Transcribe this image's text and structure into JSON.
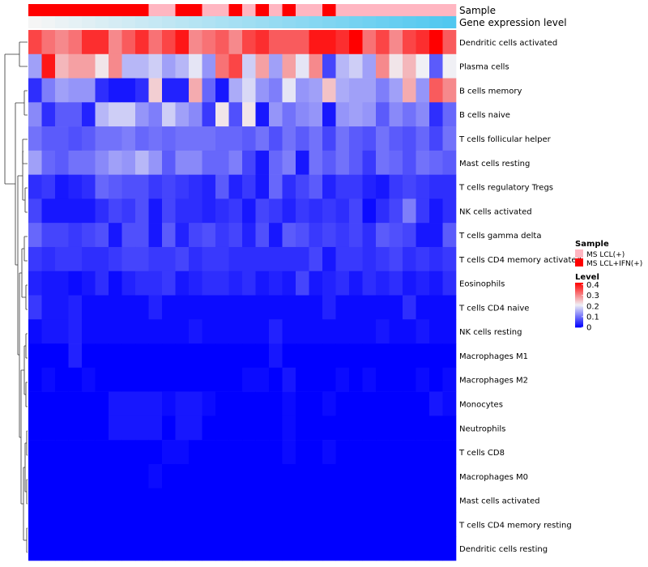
{
  "chart_data": {
    "type": "heatmap",
    "annotation_labels": [
      "Sample",
      "Gene expression level"
    ],
    "rows": [
      "Dendritic cells activated",
      "Plasma cells",
      "B cells memory",
      "B cells naive",
      "T cells follicular helper",
      "Mast cells resting",
      "T cells regulatory  Tregs",
      "NK cells activated",
      "T cells gamma delta",
      "T cells CD4 memory activated",
      "Eosinophils",
      "T cells CD4 naive",
      "NK cells resting",
      "Macrophages M1",
      "Macrophages M2",
      "Monocytes",
      "Neutrophils",
      "T cells CD8",
      "Macrophages M0",
      "Mast cells activated",
      "T cells CD4 memory resting",
      "Dendritic cells resting"
    ],
    "sample_groups": [
      1,
      1,
      1,
      1,
      1,
      1,
      1,
      1,
      1,
      0,
      0,
      1,
      1,
      0,
      0,
      1,
      0,
      1,
      0,
      1,
      0,
      0,
      1,
      0,
      0,
      0,
      0,
      0,
      0,
      0,
      0,
      0
    ],
    "sample_legend": {
      "title": "Sample",
      "items": [
        {
          "label": "MS LCL(+)",
          "color": "#ffb6c1"
        },
        {
          "label": "MS LCL+IFN(+)",
          "color": "#ff0000"
        }
      ]
    },
    "level_legend": {
      "title": "Level",
      "ticks": [
        "0.4",
        "0.3",
        "0.2",
        "0.1",
        "0"
      ],
      "tick_values": [
        0.4,
        0.3,
        0.2,
        0.1,
        0
      ],
      "range": [
        0,
        0.42
      ]
    },
    "values": [
      [
        0.36,
        0.32,
        0.3,
        0.32,
        0.38,
        0.38,
        0.3,
        0.34,
        0.38,
        0.32,
        0.36,
        0.4,
        0.3,
        0.32,
        0.34,
        0.3,
        0.36,
        0.38,
        0.34,
        0.34,
        0.34,
        0.4,
        0.4,
        0.38,
        0.42,
        0.32,
        0.36,
        0.3,
        0.36,
        0.38,
        0.42,
        0.34
      ],
      [
        0.14,
        0.4,
        0.26,
        0.28,
        0.28,
        0.22,
        0.3,
        0.16,
        0.16,
        0.18,
        0.14,
        0.16,
        0.2,
        0.13,
        0.32,
        0.36,
        0.18,
        0.28,
        0.14,
        0.28,
        0.2,
        0.3,
        0.06,
        0.16,
        0.18,
        0.14,
        0.3,
        0.22,
        0.26,
        0.21,
        0.08,
        0.21
      ],
      [
        0.04,
        0.11,
        0.14,
        0.13,
        0.13,
        0.04,
        0.02,
        0.02,
        0.04,
        0.24,
        0.03,
        0.03,
        0.27,
        0.09,
        0.02,
        0.15,
        0.19,
        0.13,
        0.11,
        0.2,
        0.13,
        0.14,
        0.25,
        0.15,
        0.14,
        0.14,
        0.11,
        0.14,
        0.27,
        0.13,
        0.34,
        0.3
      ],
      [
        0.12,
        0.04,
        0.08,
        0.08,
        0.03,
        0.16,
        0.18,
        0.18,
        0.13,
        0.11,
        0.18,
        0.14,
        0.12,
        0.05,
        0.22,
        0.07,
        0.22,
        0.02,
        0.13,
        0.1,
        0.12,
        0.13,
        0.02,
        0.13,
        0.14,
        0.13,
        0.08,
        0.12,
        0.1,
        0.12,
        0.04,
        0.09
      ],
      [
        0.1,
        0.08,
        0.08,
        0.07,
        0.08,
        0.1,
        0.1,
        0.11,
        0.09,
        0.1,
        0.09,
        0.1,
        0.1,
        0.1,
        0.09,
        0.09,
        0.08,
        0.1,
        0.07,
        0.1,
        0.08,
        0.1,
        0.06,
        0.1,
        0.08,
        0.07,
        0.1,
        0.08,
        0.07,
        0.09,
        0.06,
        0.1
      ],
      [
        0.14,
        0.09,
        0.08,
        0.1,
        0.1,
        0.12,
        0.14,
        0.13,
        0.16,
        0.13,
        0.08,
        0.12,
        0.12,
        0.09,
        0.09,
        0.11,
        0.06,
        0.02,
        0.09,
        0.11,
        0.02,
        0.1,
        0.08,
        0.1,
        0.08,
        0.05,
        0.1,
        0.09,
        0.07,
        0.1,
        0.09,
        0.08
      ],
      [
        0.04,
        0.05,
        0.02,
        0.03,
        0.04,
        0.09,
        0.08,
        0.07,
        0.07,
        0.05,
        0.06,
        0.05,
        0.04,
        0.03,
        0.08,
        0.03,
        0.05,
        0.02,
        0.09,
        0.04,
        0.06,
        0.08,
        0.03,
        0.05,
        0.05,
        0.03,
        0.02,
        0.05,
        0.06,
        0.05,
        0.04,
        0.04
      ],
      [
        0.06,
        0.02,
        0.02,
        0.02,
        0.02,
        0.04,
        0.06,
        0.05,
        0.07,
        0.02,
        0.06,
        0.04,
        0.04,
        0.03,
        0.04,
        0.05,
        0.02,
        0.06,
        0.05,
        0.03,
        0.05,
        0.04,
        0.05,
        0.04,
        0.06,
        0.01,
        0.04,
        0.06,
        0.11,
        0.05,
        0.02,
        0.04
      ],
      [
        0.09,
        0.06,
        0.06,
        0.05,
        0.06,
        0.07,
        0.02,
        0.07,
        0.07,
        0.02,
        0.08,
        0.03,
        0.06,
        0.07,
        0.05,
        0.06,
        0.03,
        0.07,
        0.02,
        0.08,
        0.07,
        0.05,
        0.06,
        0.05,
        0.06,
        0.04,
        0.08,
        0.07,
        0.06,
        0.02,
        0.02,
        0.08
      ],
      [
        0.05,
        0.04,
        0.05,
        0.05,
        0.04,
        0.04,
        0.05,
        0.06,
        0.06,
        0.05,
        0.05,
        0.06,
        0.04,
        0.05,
        0.05,
        0.04,
        0.04,
        0.04,
        0.04,
        0.04,
        0.04,
        0.06,
        0.02,
        0.05,
        0.05,
        0.04,
        0.05,
        0.06,
        0.04,
        0.05,
        0.04,
        0.05
      ],
      [
        0.03,
        0.02,
        0.02,
        0.01,
        0.02,
        0.04,
        0.01,
        0.03,
        0.04,
        0.04,
        0.05,
        0.02,
        0.03,
        0.04,
        0.04,
        0.03,
        0.04,
        0.02,
        0.03,
        0.02,
        0.06,
        0.02,
        0.03,
        0.04,
        0.02,
        0.04,
        0.03,
        0.04,
        0.02,
        0.03,
        0.02,
        0.04
      ],
      [
        0.05,
        0.02,
        0.02,
        0.03,
        0.01,
        0.01,
        0.01,
        0.01,
        0.01,
        0.03,
        0.01,
        0.01,
        0.01,
        0.01,
        0.01,
        0.01,
        0.01,
        0.01,
        0.01,
        0.01,
        0.01,
        0.01,
        0.03,
        0.01,
        0.01,
        0.01,
        0.01,
        0.01,
        0.04,
        0.01,
        0.01,
        0.01
      ],
      [
        0.01,
        0.02,
        0.02,
        0.03,
        0.01,
        0.01,
        0.01,
        0.01,
        0.01,
        0.01,
        0.01,
        0.01,
        0.02,
        0.01,
        0.01,
        0.01,
        0.01,
        0.01,
        0.03,
        0.01,
        0.01,
        0.01,
        0.01,
        0.01,
        0.01,
        0.01,
        0.02,
        0.01,
        0.01,
        0.02,
        0.01,
        0.01
      ],
      [
        0.0,
        0.0,
        0.0,
        0.03,
        0.0,
        0.0,
        0.0,
        0.0,
        0.0,
        0.0,
        0.0,
        0.0,
        0.0,
        0.0,
        0.0,
        0.0,
        0.0,
        0.0,
        0.02,
        0.0,
        0.0,
        0.0,
        0.0,
        0.0,
        0.0,
        0.0,
        0.0,
        0.0,
        0.0,
        0.0,
        0.0,
        0.0
      ],
      [
        0.0,
        0.01,
        0.0,
        0.0,
        0.01,
        0.0,
        0.0,
        0.0,
        0.0,
        0.0,
        0.0,
        0.0,
        0.0,
        0.0,
        0.0,
        0.0,
        0.01,
        0.01,
        0.0,
        0.02,
        0.0,
        0.0,
        0.0,
        0.01,
        0.0,
        0.01,
        0.0,
        0.0,
        0.0,
        0.01,
        0.0,
        0.01
      ],
      [
        0.0,
        0.0,
        0.0,
        0.0,
        0.0,
        0.0,
        0.02,
        0.02,
        0.02,
        0.02,
        0.01,
        0.02,
        0.02,
        0.01,
        0.0,
        0.0,
        0.0,
        0.0,
        0.0,
        0.01,
        0.0,
        0.0,
        0.01,
        0.0,
        0.0,
        0.0,
        0.0,
        0.0,
        0.0,
        0.0,
        0.02,
        0.01
      ],
      [
        0.0,
        0.0,
        0.0,
        0.0,
        0.0,
        0.0,
        0.02,
        0.02,
        0.02,
        0.02,
        0.0,
        0.02,
        0.02,
        0.0,
        0.0,
        0.0,
        0.0,
        0.0,
        0.0,
        0.01,
        0.0,
        0.0,
        0.0,
        0.0,
        0.0,
        0.0,
        0.0,
        0.0,
        0.0,
        0.0,
        0.0,
        0.0
      ],
      [
        0.0,
        0.0,
        0.0,
        0.0,
        0.0,
        0.0,
        0.0,
        0.0,
        0.0,
        0.0,
        0.01,
        0.01,
        0.0,
        0.0,
        0.0,
        0.0,
        0.0,
        0.0,
        0.0,
        0.01,
        0.0,
        0.0,
        0.01,
        0.0,
        0.0,
        0.0,
        0.0,
        0.0,
        0.0,
        0.0,
        0.0,
        0.0
      ],
      [
        0.0,
        0.0,
        0.0,
        0.0,
        0.0,
        0.0,
        0.0,
        0.0,
        0.0,
        0.01,
        0.0,
        0.0,
        0.0,
        0.0,
        0.0,
        0.0,
        0.0,
        0.0,
        0.0,
        0.0,
        0.0,
        0.0,
        0.0,
        0.0,
        0.0,
        0.0,
        0.0,
        0.0,
        0.0,
        0.0,
        0.0,
        0.0
      ],
      [
        0,
        0,
        0,
        0,
        0,
        0,
        0,
        0,
        0,
        0,
        0,
        0,
        0,
        0,
        0,
        0,
        0,
        0,
        0,
        0,
        0,
        0,
        0,
        0,
        0,
        0,
        0,
        0,
        0,
        0,
        0,
        0
      ],
      [
        0,
        0,
        0,
        0,
        0,
        0,
        0,
        0,
        0,
        0,
        0,
        0,
        0,
        0,
        0,
        0,
        0,
        0,
        0,
        0,
        0,
        0,
        0,
        0,
        0,
        0,
        0,
        0,
        0,
        0,
        0,
        0
      ],
      [
        0,
        0,
        0,
        0,
        0,
        0,
        0,
        0,
        0,
        0,
        0,
        0,
        0,
        0,
        0,
        0,
        0,
        0,
        0,
        0,
        0,
        0,
        0,
        0,
        0,
        0,
        0,
        0,
        0,
        0,
        0,
        0
      ]
    ]
  }
}
